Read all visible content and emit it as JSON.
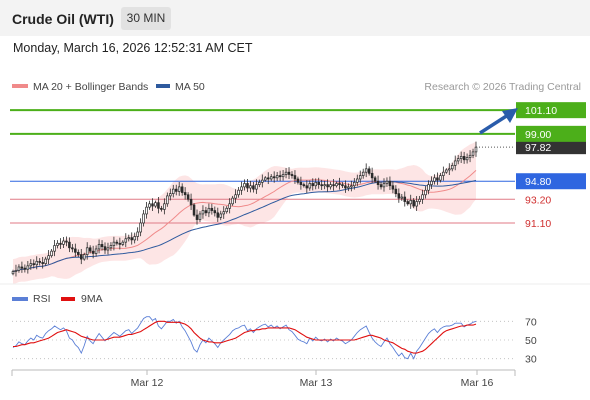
{
  "header": {
    "title": "Crude Oil (WTI)",
    "timeframe": "30 MIN",
    "datetime": "Monday, March 16, 2026 12:52:31 AM CET"
  },
  "legend_main": [
    {
      "label": "MA 20 + Bollinger Bands",
      "color": "#f08a8a"
    },
    {
      "label": "MA 50",
      "color": "#2e5a9e"
    }
  ],
  "copyright": "Research © 2026 Trading Central",
  "legend_rsi": [
    {
      "label": "RSI",
      "color": "#5b7fd6"
    },
    {
      "label": "9MA",
      "color": "#e01010"
    }
  ],
  "colors": {
    "resistance": "#4caf1a",
    "pivot": "#2f66e0",
    "support": "#e07a86",
    "last_price_box": "#333333",
    "candle_up": "#2a2a2a",
    "candle_down": "#2a2a2a",
    "bollinger_fill": "#fde0e0",
    "arrow": "#2a5cab"
  },
  "chart_data": [
    {
      "type": "candlestick",
      "title": "Crude Oil (WTI)",
      "timeframe": "30 MIN",
      "x_ticks": [
        "Mar 12",
        "Mar 13",
        "Mar 16"
      ],
      "ylim": [
        86.4,
        102.0
      ],
      "last_price": 97.82,
      "levels": [
        {
          "value": 101.1,
          "label": "101.10",
          "kind": "resistance"
        },
        {
          "value": 99.0,
          "label": "99.00",
          "kind": "resistance"
        },
        {
          "value": 94.8,
          "label": "94.80",
          "kind": "pivot"
        },
        {
          "value": 93.2,
          "label": "93.20",
          "kind": "support"
        },
        {
          "value": 91.1,
          "label": "91.10",
          "kind": "support"
        }
      ],
      "close": [
        86.8,
        86.9,
        87.2,
        87.1,
        87.0,
        87.3,
        87.5,
        87.4,
        87.7,
        87.6,
        87.5,
        87.9,
        88.2,
        88.6,
        89.1,
        89.3,
        89.2,
        89.5,
        89.4,
        88.9,
        88.8,
        88.5,
        88.3,
        87.9,
        88.3,
        88.9,
        88.6,
        88.4,
        88.8,
        89.2,
        89.0,
        88.7,
        88.9,
        89.1,
        89.4,
        89.3,
        89.2,
        89.4,
        89.7,
        89.8,
        89.6,
        89.9,
        90.3,
        91.1,
        91.9,
        92.5,
        92.8,
        92.6,
        92.9,
        92.4,
        92.3,
        92.8,
        93.5,
        93.7,
        94.1,
        93.9,
        94.3,
        93.8,
        93.6,
        93.2,
        92.7,
        91.8,
        91.4,
        91.9,
        92.2,
        92.0,
        92.4,
        92.2,
        92.0,
        91.6,
        91.9,
        92.1,
        92.4,
        92.8,
        93.3,
        93.6,
        94.0,
        94.3,
        94.6,
        94.2,
        94.4,
        94.1,
        94.5,
        94.7,
        94.9,
        95.1,
        95.0,
        95.2,
        95.1,
        95.3,
        95.2,
        95.4,
        95.6,
        95.4,
        95.3,
        95.0,
        94.7,
        94.5,
        94.4,
        94.2,
        94.6,
        94.4,
        94.7,
        94.5,
        94.4,
        94.5,
        94.3,
        94.5,
        94.4,
        94.6,
        94.5,
        94.4,
        94.2,
        94.3,
        94.4,
        94.7,
        95.0,
        95.3,
        95.6,
        95.9,
        95.5,
        95.1,
        94.8,
        94.5,
        94.3,
        94.6,
        94.8,
        94.4,
        94.1,
        93.7,
        93.3,
        93.4,
        93.0,
        92.8,
        93.1,
        92.6,
        93.0,
        93.2,
        93.6,
        94.0,
        94.5,
        94.8,
        95.1,
        94.9,
        95.3,
        95.6,
        95.8,
        95.9,
        96.2,
        96.6,
        96.8,
        97.0,
        96.7,
        96.9,
        97.1,
        97.4,
        97.82
      ],
      "rsi": {
        "levels": [
          70,
          50,
          30
        ],
        "ylim": [
          20,
          80
        ],
        "series": [
          {
            "name": "RSI",
            "values": [
              42,
              44,
              48,
              46,
              45,
              49,
              52,
              50,
              55,
              53,
              52,
              57,
              60,
              62,
              65,
              63,
              61,
              63,
              60,
              52,
              50,
              45,
              42,
              36,
              44,
              54,
              49,
              46,
              52,
              57,
              53,
              49,
              52,
              55,
              58,
              56,
              54,
              57,
              60,
              61,
              57,
              60,
              63,
              68,
              73,
              75,
              75,
              71,
              73,
              65,
              62,
              66,
              70,
              70,
              72,
              68,
              70,
              64,
              60,
              54,
              48,
              40,
              37,
              45,
              50,
              47,
              52,
              49,
              46,
              42,
              47,
              50,
              53,
              56,
              60,
              62,
              63,
              65,
              66,
              60,
              62,
              58,
              62,
              64,
              66,
              67,
              64,
              66,
              63,
              65,
              62,
              64,
              66,
              61,
              59,
              55,
              51,
              49,
              48,
              46,
              52,
              49,
              53,
              50,
              49,
              51,
              48,
              51,
              49,
              52,
              50,
              49,
              46,
              48,
              50,
              54,
              58,
              61,
              63,
              65,
              58,
              52,
              48,
              45,
              43,
              48,
              52,
              46,
              42,
              37,
              33,
              36,
              31,
              30,
              36,
              30,
              38,
              42,
              47,
              52,
              57,
              60,
              62,
              58,
              62,
              64,
              65,
              65,
              66,
              68,
              68,
              68,
              64,
              66,
              67,
              69,
              70
            ]
          },
          {
            "name": "9MA",
            "values": [
              43,
              43,
              44,
              45,
              45,
              46,
              47,
              47,
              48,
              49,
              50,
              51,
              52,
              54,
              56,
              58,
              59,
              60,
              61,
              60,
              59,
              58,
              56,
              54,
              53,
              52,
              51,
              50,
              50,
              50,
              50,
              50,
              51,
              52,
              53,
              53,
              53,
              54,
              55,
              56,
              56,
              57,
              58,
              59,
              61,
              63,
              65,
              67,
              69,
              70,
              70,
              70,
              69,
              69,
              69,
              69,
              69,
              68,
              67,
              65,
              62,
              58,
              55,
              52,
              50,
              49,
              48,
              48,
              47,
              47,
              47,
              48,
              49,
              50,
              51,
              52,
              54,
              56,
              58,
              59,
              60,
              60,
              61,
              61,
              62,
              62,
              63,
              63,
              63,
              63,
              63,
              63,
              63,
              63,
              62,
              61,
              59,
              57,
              55,
              53,
              52,
              51,
              50,
              50,
              50,
              50,
              50,
              50,
              50,
              50,
              50,
              50,
              50,
              50,
              50,
              50,
              51,
              52,
              53,
              54,
              55,
              55,
              54,
              53,
              52,
              50,
              49,
              48,
              47,
              45,
              43,
              41,
              40,
              38,
              37,
              36,
              36,
              37,
              38,
              40,
              43,
              46,
              49,
              52,
              55,
              58,
              60,
              61,
              62,
              63,
              64,
              65,
              65,
              66,
              66,
              66,
              67
            ]
          }
        ]
      }
    }
  ]
}
